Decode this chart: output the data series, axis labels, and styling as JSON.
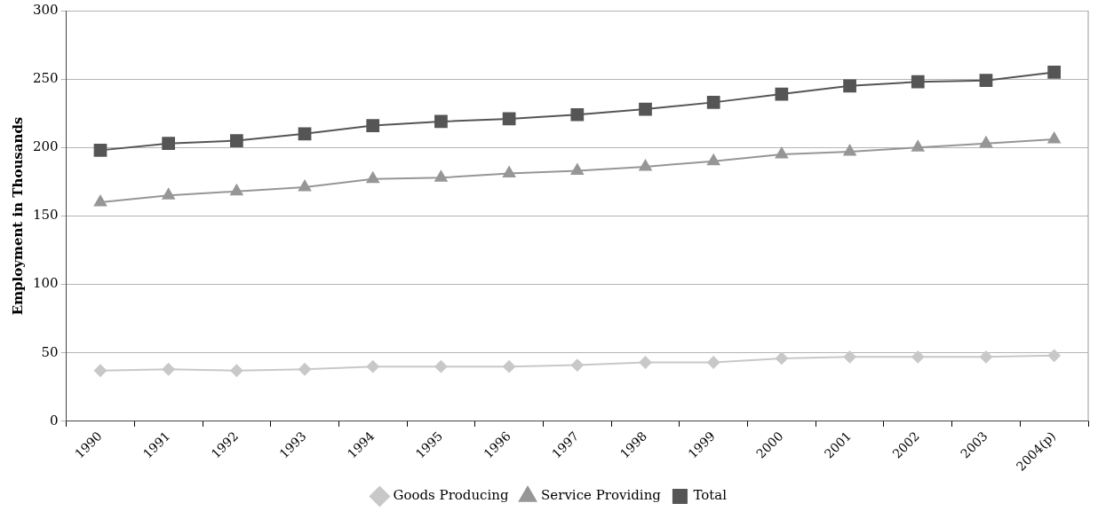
{
  "chart_data": {
    "type": "line",
    "ylabel": "Employment in Thousands",
    "categories": [
      "1990",
      "1991",
      "1992",
      "1993",
      "1994",
      "1995",
      "1996",
      "1997",
      "1998",
      "1999",
      "2000",
      "2001",
      "2002",
      "2003",
      "2004(p)"
    ],
    "series": [
      {
        "name": "Goods Producing",
        "color": "#c8c8c8",
        "marker": "diamond",
        "values": [
          37,
          38,
          37,
          38,
          40,
          40,
          40,
          41,
          43,
          43,
          46,
          47,
          47,
          47,
          48
        ]
      },
      {
        "name": "Service Providing",
        "color": "#969696",
        "marker": "triangle",
        "values": [
          160,
          165,
          168,
          171,
          177,
          178,
          181,
          183,
          186,
          190,
          195,
          197,
          200,
          203,
          206
        ]
      },
      {
        "name": "Total",
        "color": "#555555",
        "marker": "square",
        "values": [
          198,
          203,
          205,
          210,
          216,
          219,
          221,
          224,
          228,
          233,
          239,
          245,
          248,
          249,
          255
        ]
      }
    ],
    "ylim": [
      0,
      300
    ],
    "yticks": [
      0,
      50,
      100,
      150,
      200,
      250,
      300
    ],
    "grid": "y",
    "legend": "bottom"
  }
}
